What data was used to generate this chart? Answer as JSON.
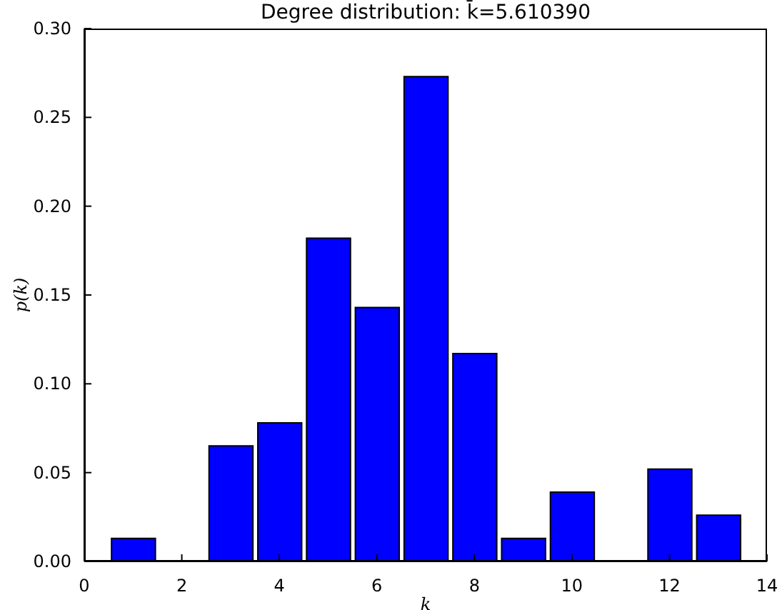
{
  "chart_data": {
    "type": "histogram",
    "title": "Degree distribution: k̄=5.610390",
    "xlabel": "k",
    "ylabel": "p(k)",
    "bins": [
      0.5,
      1.5,
      2.5,
      3.5,
      4.5,
      5.5,
      6.5,
      7.5,
      8.5,
      9.5,
      10.5,
      11.5,
      12.5,
      13.5
    ],
    "values": [
      0.013,
      0,
      0.065,
      0.078,
      0.182,
      0.143,
      0.273,
      0.117,
      0.013,
      0.039,
      0,
      0.052,
      0.026
    ],
    "color": "#0000ff",
    "xlim": [
      0,
      14
    ],
    "xticks": [
      0,
      2,
      4,
      6,
      8,
      10,
      12,
      14
    ],
    "ylim": [
      0,
      0.3
    ],
    "yticks": [
      {
        "value": 0,
        "label": "0.00"
      },
      {
        "value": 0.05,
        "label": "0.05"
      },
      {
        "value": 0.1,
        "label": "0.10"
      },
      {
        "value": 0.15,
        "label": "0.15"
      },
      {
        "value": 0.2,
        "label": "0.20"
      },
      {
        "value": 0.25,
        "label": "0.25"
      },
      {
        "value": 0.3,
        "label": "0.30"
      }
    ],
    "grid": false
  }
}
